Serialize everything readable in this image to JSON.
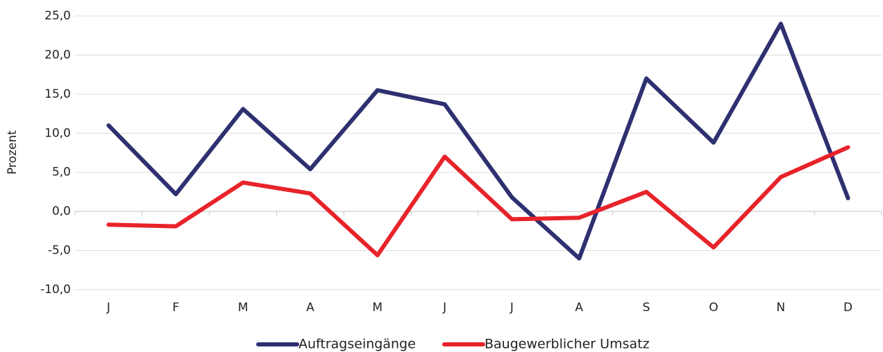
{
  "chart_data": {
    "type": "line",
    "y_label": "Prozent",
    "categories": [
      "J",
      "F",
      "M",
      "A",
      "M",
      "J",
      "J",
      "A",
      "S",
      "O",
      "N",
      "D"
    ],
    "series": [
      {
        "name": "Auftragseingänge",
        "color": "#2e3070",
        "values": [
          11.0,
          2.2,
          13.1,
          5.4,
          15.5,
          13.7,
          1.8,
          -6.0,
          17.0,
          8.8,
          24.0,
          1.7
        ]
      },
      {
        "name": "Baugewerblicher Umsatz",
        "color": "#e8232a",
        "values": [
          -1.7,
          -1.9,
          3.7,
          2.3,
          -5.6,
          7.0,
          -1.0,
          -0.8,
          2.5,
          -4.6,
          4.4,
          8.2
        ]
      }
    ],
    "ylim": [
      -10,
      25
    ],
    "yticks": [
      {
        "value": -10,
        "label": "-10,0"
      },
      {
        "value": -5,
        "label": "-5,0"
      },
      {
        "value": 0,
        "label": "0,0"
      },
      {
        "value": 5,
        "label": "5,0"
      },
      {
        "value": 10,
        "label": "10,0"
      },
      {
        "value": 15,
        "label": "15,0"
      },
      {
        "value": 20,
        "label": "20,0"
      },
      {
        "value": 25,
        "label": "25,0"
      }
    ],
    "grid": true,
    "legend": "bottom"
  }
}
